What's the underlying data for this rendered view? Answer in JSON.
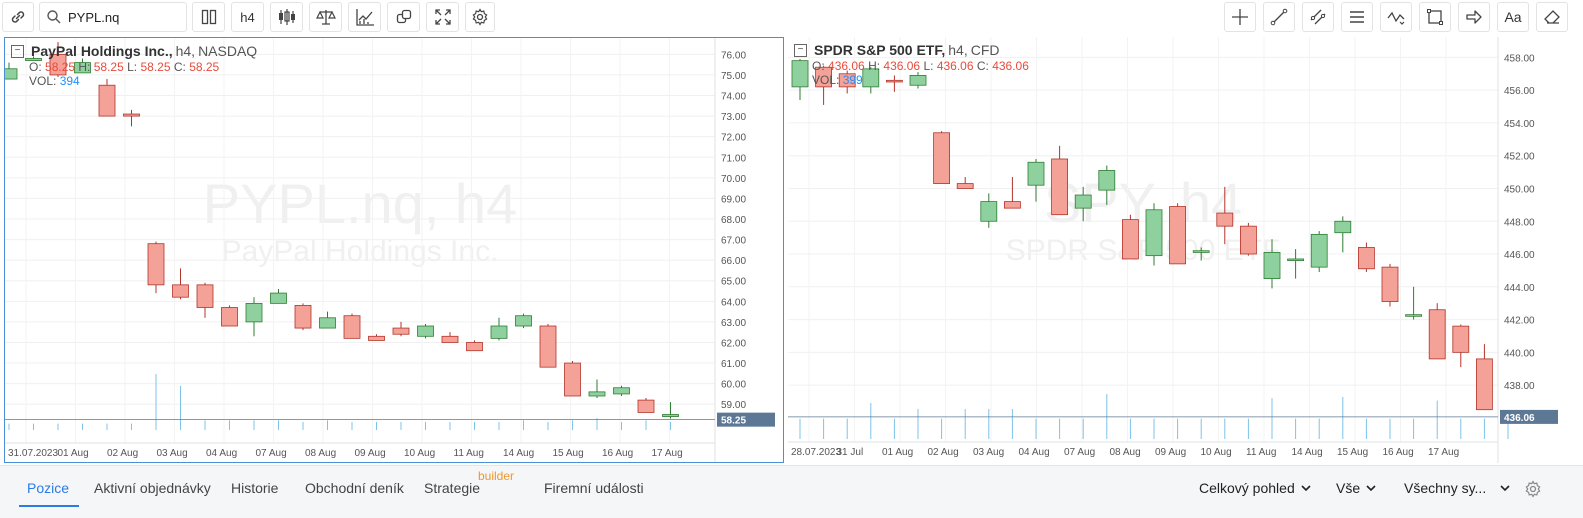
{
  "toolbar": {
    "search_value": "PYPL.nq",
    "timeframe_label": "h4"
  },
  "charts": [
    {
      "symbol": "PayPal Holdings Inc.,",
      "interval": "h4,",
      "exchange": "NASDAQ",
      "ohlc": {
        "o_label": "O:",
        "o": "58.25",
        "h_label": "H:",
        "h": "58.25",
        "l_label": "L:",
        "l": "58.25",
        "c_label": "C:",
        "c": "58.25"
      },
      "vol_label": "VOL:",
      "vol": "394",
      "watermark_main": "PYPL.nq, h4",
      "watermark_sub": "PayPal Holdings Inc.",
      "price_ticks": [
        "76.00",
        "75.00",
        "74.00",
        "73.00",
        "72.00",
        "71.00",
        "70.00",
        "69.00",
        "68.00",
        "67.00",
        "66.00",
        "65.00",
        "64.00",
        "63.00",
        "62.00",
        "61.00",
        "60.00",
        "59.00"
      ],
      "last_price": "58.25",
      "date_ticks": [
        "31.07.2023",
        "01 Aug",
        "02 Aug",
        "03 Aug",
        "04 Aug",
        "07 Aug",
        "08 Aug",
        "09 Aug",
        "10 Aug",
        "11 Aug",
        "14 Aug",
        "15 Aug",
        "16 Aug",
        "17 Aug"
      ],
      "up_color": "#8fd19e",
      "down_color": "#f4a197"
    },
    {
      "symbol": "SPDR S&P 500 ETF,",
      "interval": "h4,",
      "exchange": "CFD",
      "ohlc": {
        "o_label": "O:",
        "o": "436.06",
        "h_label": "H:",
        "h": "436.06",
        "l_label": "L:",
        "l": "436.06",
        "c_label": "C:",
        "c": "436.06"
      },
      "vol_label": "VOL:",
      "vol": "399",
      "watermark_main": "SPY, h4",
      "watermark_sub": "SPDR S&P 500 ETF",
      "price_ticks": [
        "458.00",
        "456.00",
        "454.00",
        "452.00",
        "450.00",
        "448.00",
        "446.00",
        "444.00",
        "442.00",
        "440.00",
        "438.00"
      ],
      "last_price": "436.06",
      "date_ticks": [
        "28.07.2023",
        "31 Jul",
        "01 Aug",
        "02 Aug",
        "03 Aug",
        "04 Aug",
        "07 Aug",
        "08 Aug",
        "09 Aug",
        "10 Aug",
        "11 Aug",
        "14 Aug",
        "15 Aug",
        "16 Aug",
        "17 Aug"
      ],
      "up_color": "#8fd19e",
      "down_color": "#f4a197"
    }
  ],
  "bottom": {
    "tabs": [
      "Pozice",
      "Aktivní objednávky",
      "Historie",
      "Obchodní deník",
      "Strategie",
      "Firemní události"
    ],
    "strategy_badge": "builder",
    "dropdowns": [
      "Celkový pohled",
      "Vše",
      "Všechny sy..."
    ]
  },
  "colors": {
    "accent": "#2d7be5",
    "badge": "#f0962c",
    "last_price_bg": "#5d7895",
    "volume": "#7cc3ea"
  }
}
